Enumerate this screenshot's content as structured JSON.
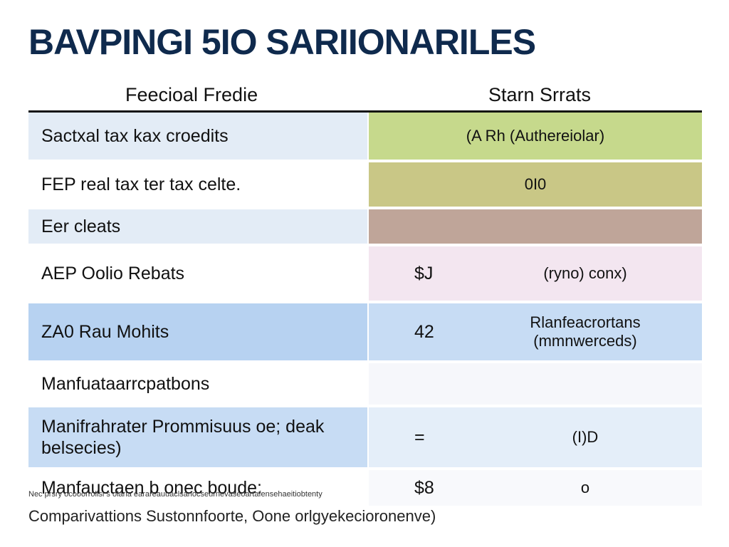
{
  "title": "BAVPINGI 5IO SARIIONARILES",
  "columns": {
    "left": "Feecioal Fredie",
    "right": "Starn Srrats"
  },
  "rows": [
    {
      "label": "Sactxal tax kax croedits",
      "value": "",
      "note": "(A Rh (Authereiolar)",
      "left_bg": "#e3ecf6",
      "right_bg": "#c6d98c",
      "height": 66
    },
    {
      "label": "FEP real tax ter tax celte.",
      "value": "",
      "note": "0I0",
      "left_bg": "#ffffff",
      "right_bg": "#c9c786",
      "height": 62
    },
    {
      "label": "Eer cleats",
      "value": "",
      "note": "",
      "left_bg": "#e3ecf6",
      "right_bg": "#bfa599",
      "height": 48
    },
    {
      "label": "AEP Oolio Rebats",
      "value": "$J",
      "note": "(ryno) conx)",
      "left_bg": "#ffffff",
      "right_bg": "#f3e6f0",
      "height": 76
    },
    {
      "label": "ZA0 Rau Mohits",
      "value": "42",
      "note": "Rlanfeacrortans\n(mmnwerceds)",
      "left_bg": "#b7d2f1",
      "right_bg": "#c7dcf4",
      "height": 80
    },
    {
      "label": "Manfuataarrcpatbons",
      "value": "",
      "note": "",
      "left_bg": "#ffffff",
      "right_bg": "#f6f7fb",
      "height": 58
    },
    {
      "label": "Manifrahrater Prommisuus oe; deak\nbelsecies)",
      "value": "=",
      "note": "(I)D",
      "left_bg": "#c7dcf4",
      "right_bg": "#e4eef9",
      "height": 84
    },
    {
      "label": "Manfauctaen b onec boude:",
      "value": "$8",
      "note": "o",
      "left_bg": "#ffffff",
      "right_bg": "#f8f9fc",
      "height": 50
    }
  ],
  "fine_print": "Nec prsry ocooorrollsl s olarla earareauuaclsanocseurnevaseoartafensehaeitiobtenty",
  "footer": "Comparivattions Sustonnfoorte, Oone orlgyekecioronenve)"
}
